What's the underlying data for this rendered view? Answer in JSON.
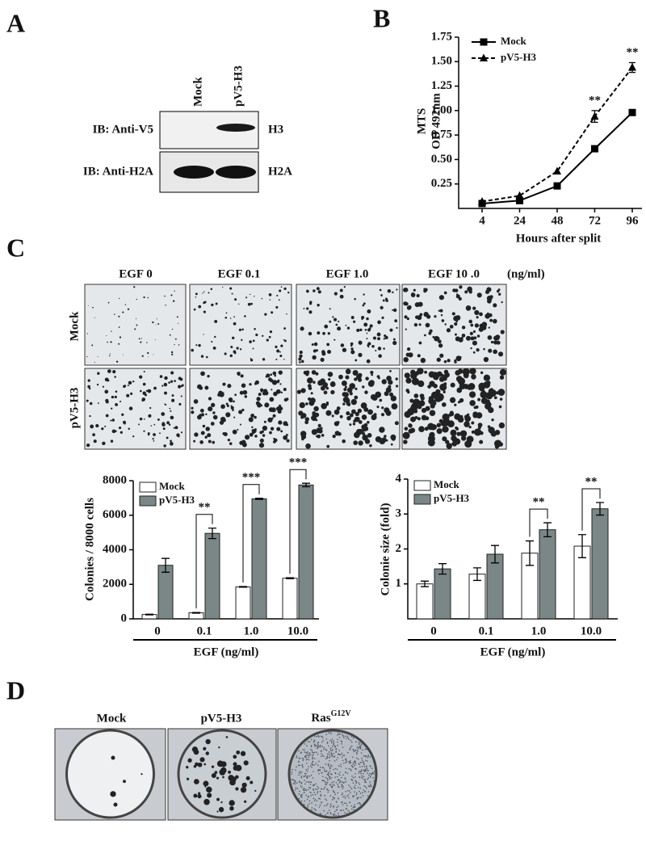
{
  "panel_labels": [
    "A",
    "B",
    "C",
    "D"
  ],
  "blot": {
    "lanes": [
      "Mock",
      "pV5-H3"
    ],
    "rows": [
      {
        "antibody": "IB: Anti-V5",
        "target": "H3"
      },
      {
        "antibody": "IB: Anti-H2A",
        "target": "H2A"
      }
    ]
  },
  "colony_images": {
    "columns": [
      "EGF 0",
      "EGF 0.1",
      "EGF 1.0",
      "EGF 10 .0"
    ],
    "unit": "(ng/ml)",
    "rows": [
      "Mock",
      "pV5-H3"
    ]
  },
  "focus_assay": {
    "labels": [
      {
        "text": "Mock"
      },
      {
        "text": "pV5-H3"
      },
      {
        "text": "Ras",
        "superscript": "G12V"
      }
    ]
  },
  "chart_data": [
    {
      "type": "line",
      "categories": [
        "4",
        "24",
        "48",
        "72",
        "96"
      ],
      "xlabel": "Hours after split",
      "ylabel": [
        "MTS",
        "OD 492nm"
      ],
      "ylim": [
        0,
        1.75
      ],
      "yticks": [
        0.25,
        {
          "value": 0.5,
          "label": "0.50"
        },
        0.75,
        {
          "value": 1,
          "label": "1.00"
        },
        1.25,
        {
          "value": 1.5,
          "label": "1.50"
        },
        1.75
      ],
      "legend": "upper left",
      "series": [
        {
          "name": "Mock",
          "color": "#000000",
          "line_style": "solid",
          "marker": "square",
          "values": [
            0.05,
            0.08,
            0.23,
            0.61,
            0.98
          ]
        },
        {
          "name": "pV5-H3",
          "color": "#000000",
          "line_style": "dashed",
          "marker": "triangle",
          "values": [
            0.07,
            0.13,
            0.38,
            0.94,
            1.44
          ],
          "errors": [
            null,
            null,
            null,
            0.06,
            0.05
          ],
          "significance": [
            null,
            null,
            null,
            "**",
            "**"
          ]
        }
      ]
    },
    {
      "type": "bar",
      "categories": [
        "0",
        "0.1",
        "1.0",
        "10.0"
      ],
      "xlabel": "EGF (ng/ml)",
      "ylabel": "Colonies / 8000 cells",
      "ylim": [
        0,
        8000
      ],
      "yticks": [
        0,
        2000,
        4000,
        6000,
        8000
      ],
      "legend": "upper left",
      "series": [
        {
          "name": "Mock",
          "color": "#ffffff",
          "values": [
            250,
            350,
            1850,
            2350
          ],
          "errors": [
            20,
            20,
            20,
            30
          ]
        },
        {
          "name": "pV5-H3",
          "color": "#7b8787",
          "values": [
            3100,
            4950,
            6950,
            7750
          ],
          "errors": [
            400,
            300,
            30,
            100
          ],
          "significance": [
            null,
            "**",
            "***",
            "***"
          ]
        }
      ]
    },
    {
      "type": "bar",
      "categories": [
        "0",
        "0.1",
        "1.0",
        "10.0"
      ],
      "xlabel": "EGF (ng/ml)",
      "ylabel": "Colonie size (fold)",
      "ylim": [
        0,
        4
      ],
      "yticks": [
        1,
        2,
        3,
        4
      ],
      "legend": "upper left",
      "series": [
        {
          "name": "Mock",
          "color": "#ffffff",
          "values": [
            1.0,
            1.28,
            1.88,
            2.08
          ],
          "errors": [
            0.08,
            0.18,
            0.35,
            0.33
          ]
        },
        {
          "name": "pV5-H3",
          "color": "#7b8787",
          "values": [
            1.43,
            1.85,
            2.55,
            3.15
          ],
          "errors": [
            0.15,
            0.25,
            0.2,
            0.18
          ],
          "significance": [
            null,
            null,
            "**",
            "**"
          ]
        }
      ]
    }
  ]
}
